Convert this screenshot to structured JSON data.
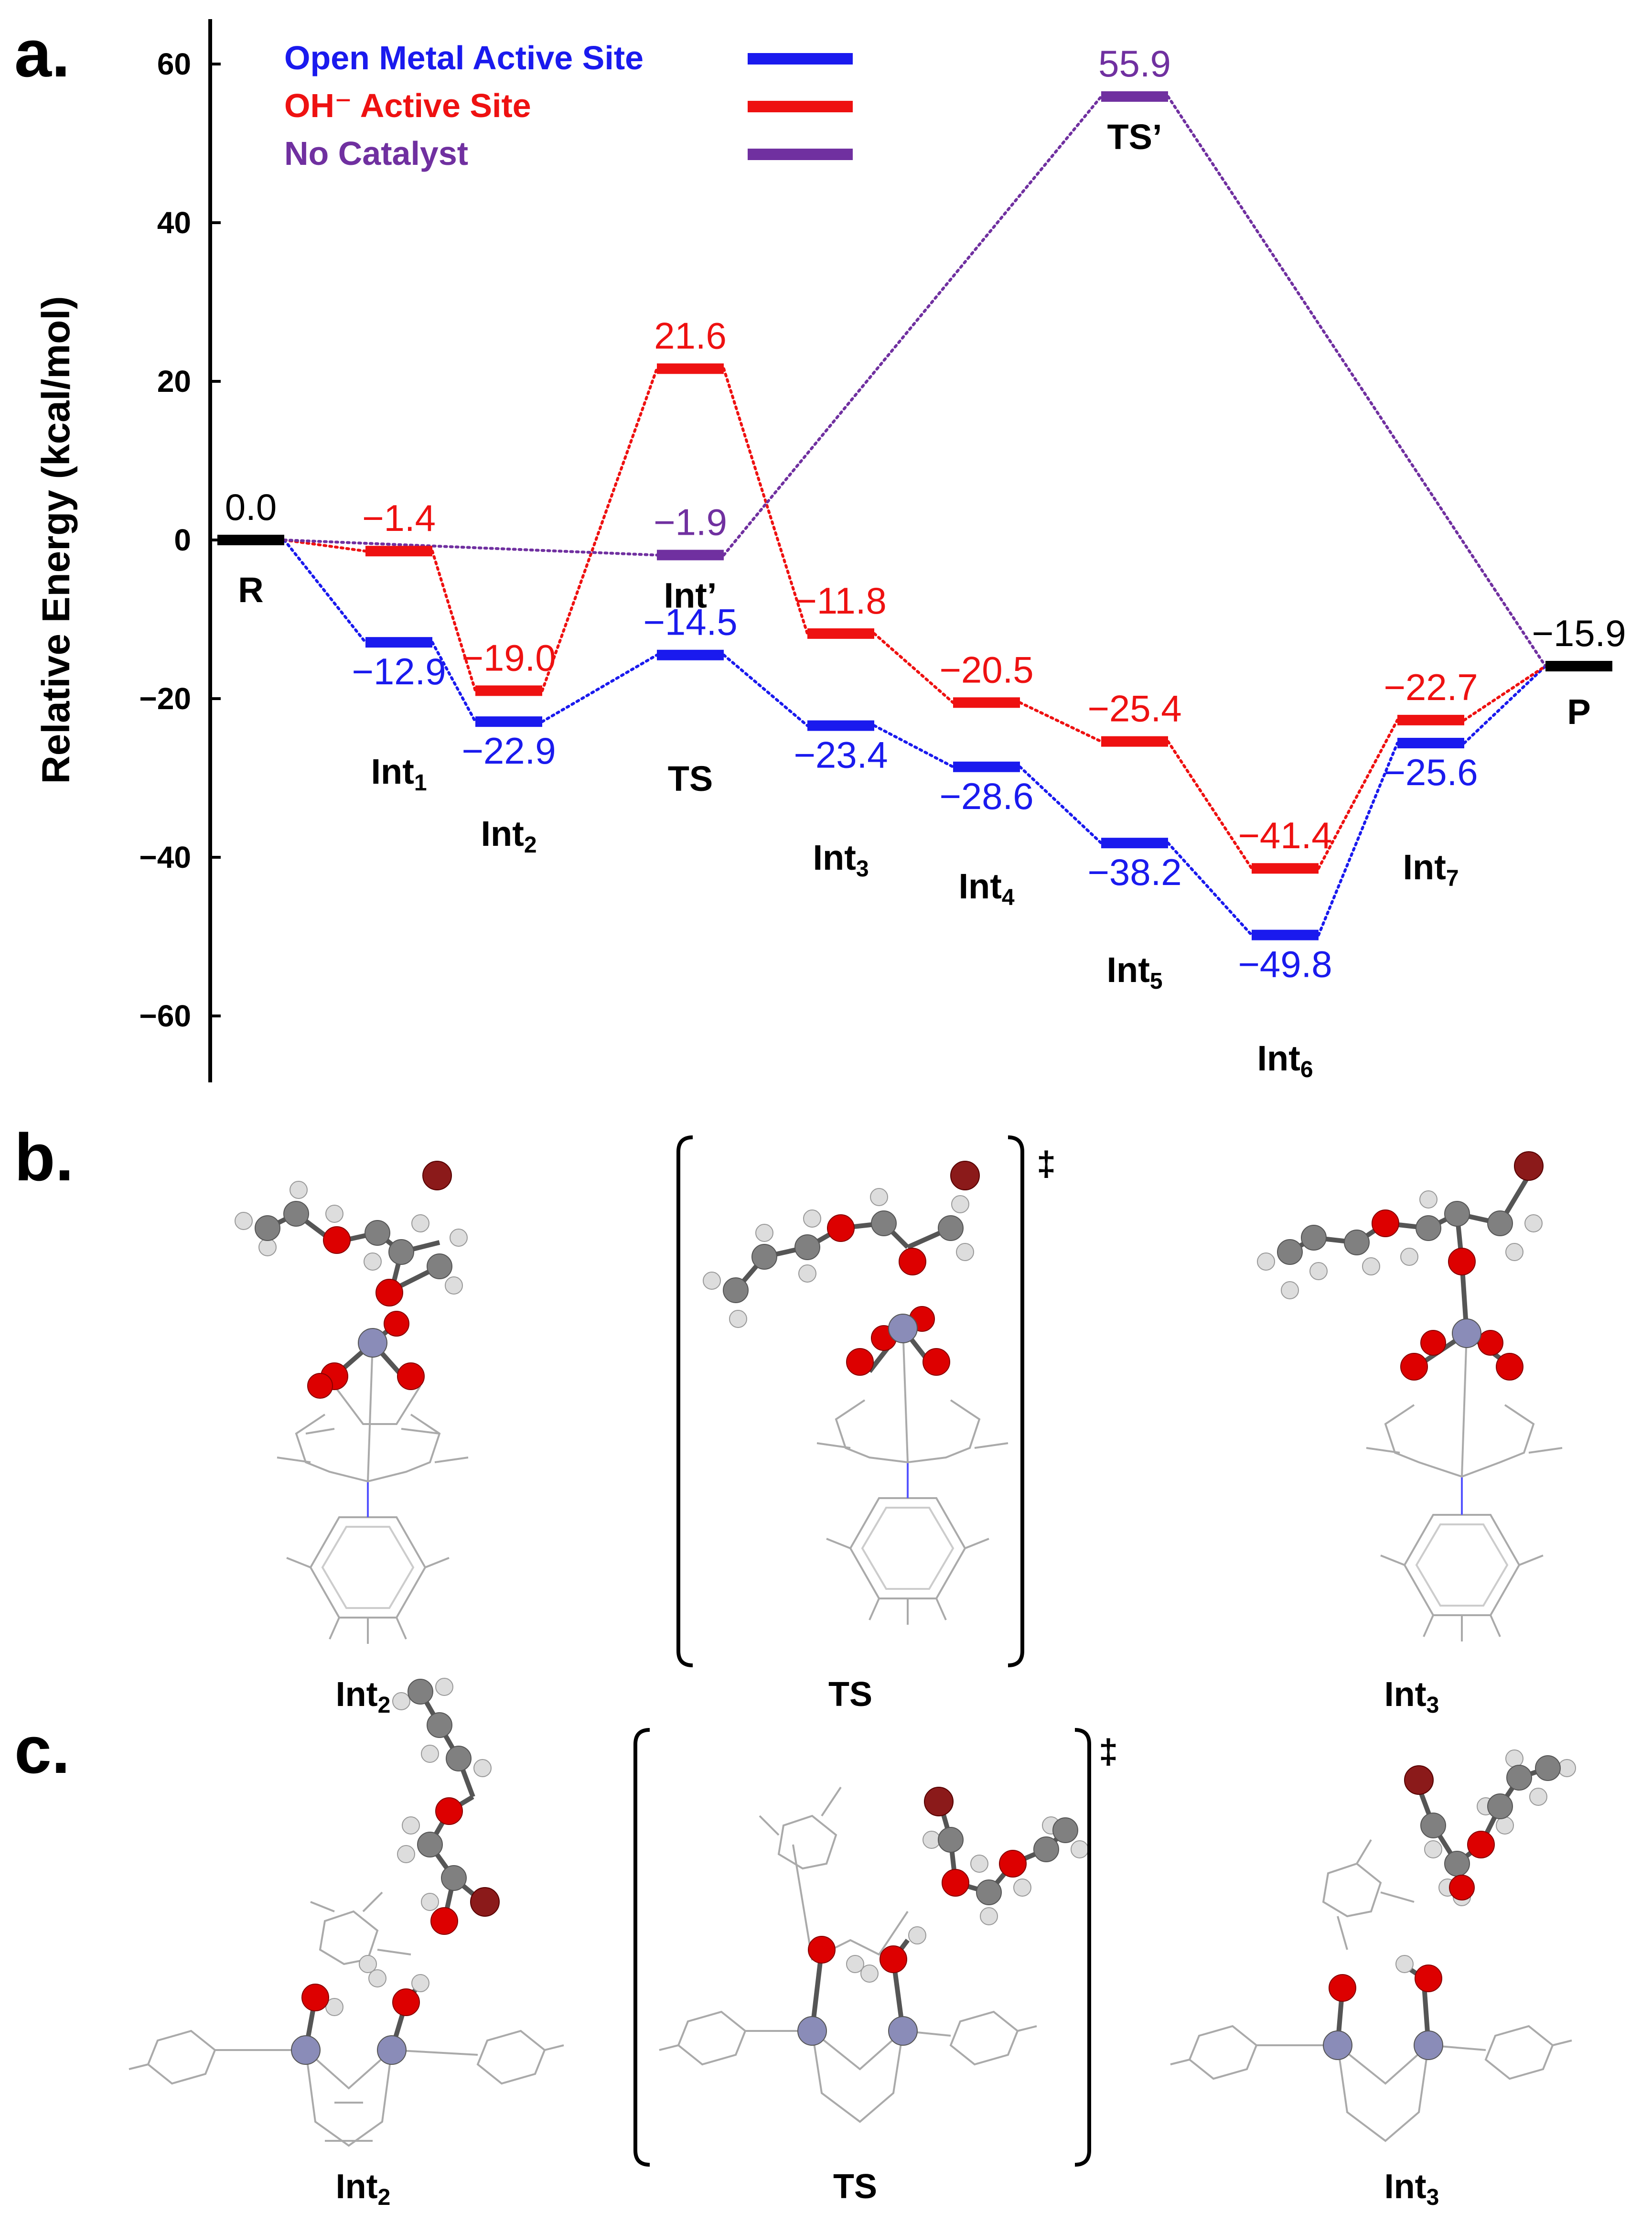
{
  "panel_labels": [
    "a.",
    "b.",
    "c."
  ],
  "chart_data": {
    "type": "line",
    "ylabel": "Relative Energy (kcal/mol)",
    "ylim": [
      -66,
      66
    ],
    "yticks": [
      60,
      40,
      20,
      0,
      -20,
      -40,
      -60
    ],
    "ytick_labels": [
      "60",
      "40",
      "20",
      "0",
      "−20",
      "−40",
      "−60"
    ],
    "grid": false,
    "legend_position": "top-left",
    "species": [
      {
        "id": "R",
        "label": "R",
        "sub": ""
      },
      {
        "id": "Int1",
        "label": "Int",
        "sub": "1"
      },
      {
        "id": "Int2",
        "label": "Int",
        "sub": "2"
      },
      {
        "id": "TS",
        "label": "TS",
        "sub": ""
      },
      {
        "id": "Int3",
        "label": "Int",
        "sub": "3"
      },
      {
        "id": "Int4",
        "label": "Int",
        "sub": "4"
      },
      {
        "id": "Int5",
        "label": "Int",
        "sub": "5"
      },
      {
        "id": "Int6",
        "label": "Int",
        "sub": "6"
      },
      {
        "id": "Int7",
        "label": "Int",
        "sub": "7"
      },
      {
        "id": "P",
        "label": "P",
        "sub": ""
      }
    ],
    "series": [
      {
        "name": "Open Metal Active Site",
        "color": "#1a1aee",
        "points": [
          {
            "x": "R",
            "y": 0.0,
            "label": "0.0"
          },
          {
            "x": "Int1",
            "y": -12.9,
            "label": "−12.9"
          },
          {
            "x": "Int2",
            "y": -22.9,
            "label": "−22.9"
          },
          {
            "x": "TS",
            "y": -14.5,
            "label": "−14.5"
          },
          {
            "x": "Int3",
            "y": -23.4,
            "label": "−23.4"
          },
          {
            "x": "Int4",
            "y": -28.6,
            "label": "−28.6"
          },
          {
            "x": "Int5",
            "y": -38.2,
            "label": "−38.2"
          },
          {
            "x": "Int6",
            "y": -49.8,
            "label": "−49.8"
          },
          {
            "x": "Int7",
            "y": -25.6,
            "label": "−25.6"
          },
          {
            "x": "P",
            "y": -15.9,
            "label": "−15.9"
          }
        ]
      },
      {
        "name": "OH⁻ Active Site",
        "color": "#ee1111",
        "points": [
          {
            "x": "R",
            "y": 0.0,
            "label": "0.0"
          },
          {
            "x": "Int1",
            "y": -1.4,
            "label": "−1.4"
          },
          {
            "x": "Int2",
            "y": -19.0,
            "label": "−19.0"
          },
          {
            "x": "TS",
            "y": 21.6,
            "label": "21.6"
          },
          {
            "x": "Int3",
            "y": -11.8,
            "label": "−11.8"
          },
          {
            "x": "Int4",
            "y": -20.5,
            "label": "−20.5"
          },
          {
            "x": "Int5",
            "y": -25.4,
            "label": "−25.4"
          },
          {
            "x": "Int6",
            "y": -41.4,
            "label": "−41.4"
          },
          {
            "x": "Int7",
            "y": -22.7,
            "label": "−22.7"
          },
          {
            "x": "P",
            "y": -15.9,
            "label": "−15.9"
          }
        ]
      },
      {
        "name": "No Catalyst",
        "color": "#7030a0",
        "points": [
          {
            "x": "R",
            "y": 0.0,
            "label": "0.0"
          },
          {
            "x": "Int'",
            "y": -1.9,
            "label": "−1.9",
            "name": "Int’"
          },
          {
            "x": "TS'",
            "y": 55.9,
            "label": "55.9",
            "name": "TS’"
          },
          {
            "x": "P",
            "y": -15.9,
            "label": "−15.9"
          }
        ]
      }
    ],
    "endpoints": {
      "R": {
        "value": "0.0",
        "color": "#000000"
      },
      "P": {
        "value": "−15.9",
        "color": "#000000"
      }
    }
  },
  "panel_b": {
    "captions": [
      {
        "label": "Int",
        "sub": "2"
      },
      {
        "label": "TS",
        "sub": ""
      },
      {
        "label": "Int",
        "sub": "3"
      }
    ],
    "dagger": "‡"
  },
  "panel_c": {
    "captions": [
      {
        "label": "Int",
        "sub": "2"
      },
      {
        "label": "TS",
        "sub": ""
      },
      {
        "label": "Int",
        "sub": "3"
      }
    ],
    "dagger": "‡"
  },
  "colors": {
    "carbon": "#777777",
    "hydrogen": "#e6e6e6",
    "oxygen": "#e00000",
    "bromine": "#8b1a1a",
    "metal": "#8a8cb8",
    "frame": "#999999"
  }
}
